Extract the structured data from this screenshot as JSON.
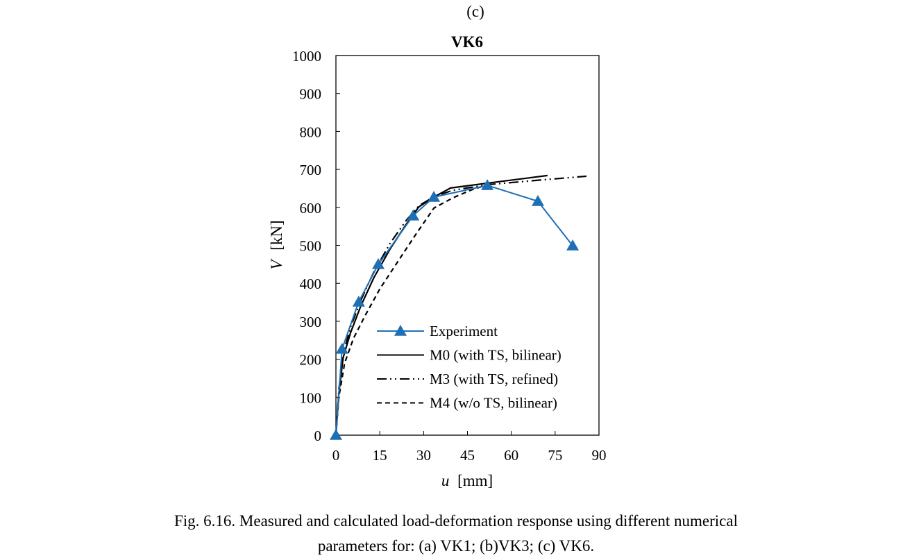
{
  "panel_label": "(c)",
  "caption": {
    "line1": "Fig. 6.16. Measured and calculated load-deformation response using different numerical",
    "line2": "parameters for: (a) VK1; (b)VK3; (c) VK6."
  },
  "colors": {
    "experiment": "#1f6fb5",
    "model": "#000000",
    "axis": "#000000"
  },
  "chart_data": {
    "type": "line",
    "title": "VK6",
    "xlabel_var": "u",
    "xlabel_unit": "[mm]",
    "ylabel_var": "V",
    "ylabel_unit": "[kN]",
    "xlim": [
      0,
      90
    ],
    "ylim": [
      0,
      1000
    ],
    "xticks": [
      0,
      15,
      30,
      45,
      60,
      75,
      90
    ],
    "yticks": [
      0,
      100,
      200,
      300,
      400,
      500,
      600,
      700,
      800,
      900,
      1000
    ],
    "grid": false,
    "legend_position": "bottom-center",
    "series": [
      {
        "name": "Experiment",
        "style": "solid-marker-triangle",
        "color": "#1f6fb5",
        "x": [
          0,
          2.1,
          7.8,
          14.5,
          26.4,
          33.5,
          51.8,
          69.1,
          81.0
        ],
        "y": [
          0,
          227,
          351,
          450,
          578,
          627,
          658,
          616,
          499
        ]
      },
      {
        "name": "M0 (with TS, bilinear)",
        "style": "solid",
        "color": "#000000",
        "x": [
          0,
          1.0,
          2.5,
          5.0,
          8.5,
          13.0,
          18.5,
          24.0,
          28.3,
          33.0,
          39.2,
          52.0,
          72.4
        ],
        "y": [
          0,
          110,
          205,
          270,
          340,
          415,
          490,
          555,
          601,
          625,
          651,
          664,
          684
        ]
      },
      {
        "name": "M3 (with TS, refined)",
        "style": "dash-dot-dot",
        "color": "#000000",
        "x": [
          0,
          1.0,
          2.5,
          5.0,
          8.5,
          13.0,
          18.5,
          24.0,
          28.5,
          33.5,
          40.0,
          52.0,
          70.0,
          85.7
        ],
        "y": [
          0,
          120,
          215,
          285,
          355,
          430,
          505,
          565,
          605,
          628,
          645,
          660,
          672,
          682
        ]
      },
      {
        "name": "M4 (w/o TS, bilinear)",
        "style": "dashed",
        "color": "#000000",
        "x": [
          0,
          1.0,
          3.0,
          6.0,
          10.0,
          15.0,
          21.0,
          27.0,
          33.5,
          40.0,
          46.0,
          52.0
        ],
        "y": [
          0,
          100,
          190,
          255,
          315,
          385,
          455,
          525,
          598,
          625,
          645,
          660
        ]
      }
    ]
  }
}
